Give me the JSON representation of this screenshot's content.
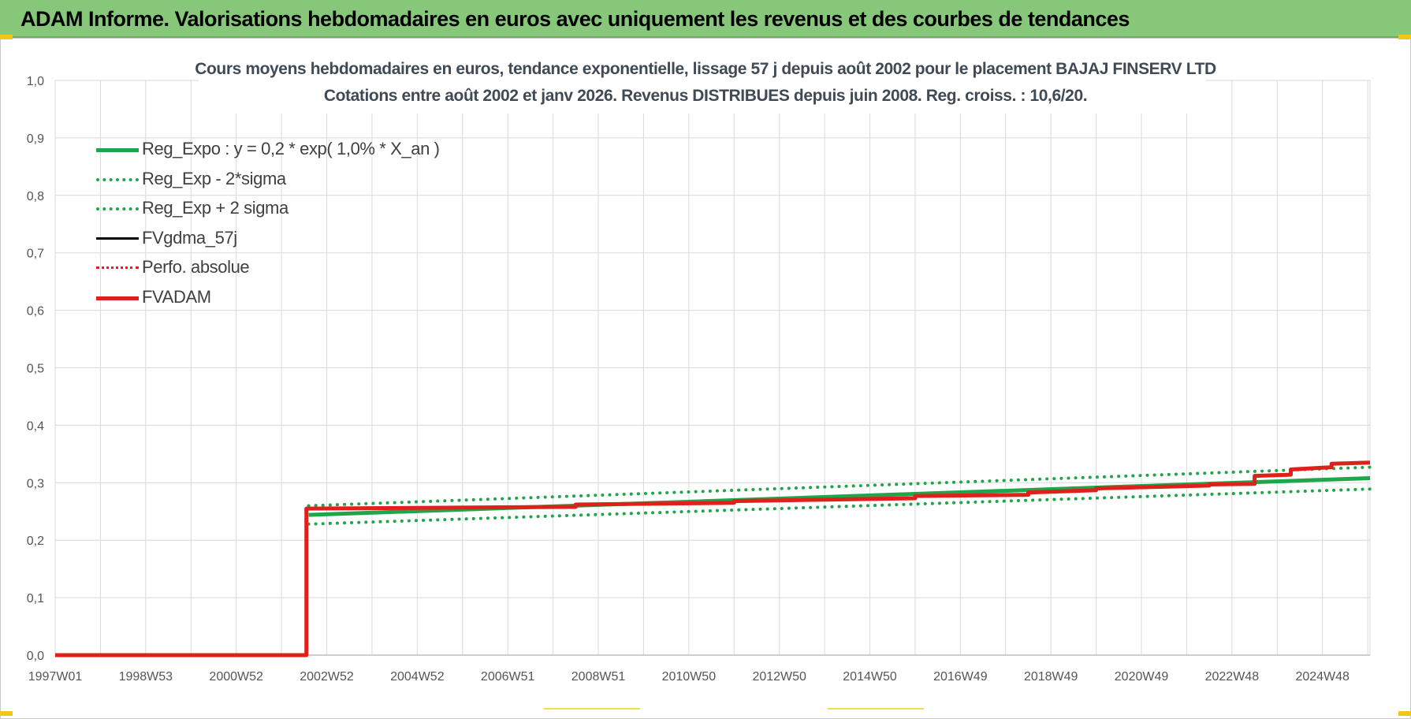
{
  "banner": {
    "title": "ADAM Informe. Valorisations hebdomadaires en euros avec uniquement les revenus et des courbes de tendances"
  },
  "chart_data": {
    "type": "line",
    "title_line1": "Cours moyens hebdomadaires en euros, tendance exponentielle, lissage 57 j depuis août 2002 pour le placement BAJAJ FINSERV LTD",
    "title_line2": "Cotations entre août 2002 et janv 2026. Revenus DISTRIBUES depuis juin 2008. Reg. croiss. : 10,6/20.",
    "xlabel": "",
    "ylabel": "",
    "x_range": [
      1997.0,
      2026.05
    ],
    "ylim": [
      0,
      1.0
    ],
    "y_ticks": [
      "0,0",
      "0,1",
      "0,2",
      "0,3",
      "0,4",
      "0,5",
      "0,6",
      "0,7",
      "0,8",
      "0,9",
      "1,0"
    ],
    "x_tick_labels": [
      "1997W01",
      "1998W53",
      "2000W52",
      "2002W52",
      "2004W52",
      "2006W51",
      "2008W51",
      "2010W50",
      "2012W50",
      "2014W50",
      "2016W49",
      "2018W49",
      "2020W49",
      "2022W48",
      "2024W48"
    ],
    "x_tick_years": [
      1997.0,
      1999.0,
      2001.0,
      2003.0,
      2005.0,
      2007.0,
      2009.0,
      2011.0,
      2013.0,
      2015.0,
      2017.0,
      2019.0,
      2021.0,
      2023.0,
      2025.0
    ],
    "grid": true,
    "legend_position": "top-left",
    "series": [
      {
        "name": "Reg_Expo : y = 0,2 * exp( 1,0% *  X_an )",
        "color": "#1fa64a",
        "style": "solid",
        "x": [
          2002.6,
          2026.05
        ],
        "y": [
          0.244,
          0.308
        ]
      },
      {
        "name": "Reg_Exp - 2*sigma",
        "color": "#1fa64a",
        "style": "dotted",
        "x": [
          2002.6,
          2026.05
        ],
        "y": [
          0.228,
          0.289
        ]
      },
      {
        "name": "Reg_Exp + 2 sigma",
        "color": "#1fa64a",
        "style": "dotted",
        "x": [
          2002.6,
          2026.05
        ],
        "y": [
          0.26,
          0.327
        ]
      },
      {
        "name": "FVgdma_57j",
        "color": "#000000",
        "style": "solid",
        "x": [
          1997.0,
          2002.55,
          2002.55,
          2008.5,
          2008.5,
          2012.0,
          2012.0,
          2016.0,
          2016.0,
          2018.5,
          2018.5,
          2020.0,
          2020.0,
          2022.5,
          2022.5,
          2023.5,
          2023.5,
          2024.3,
          2024.3,
          2025.2,
          2025.2,
          2025.9
        ],
        "y": [
          0.0,
          0.0,
          0.255,
          0.258,
          0.262,
          0.265,
          0.268,
          0.273,
          0.277,
          0.279,
          0.283,
          0.287,
          0.29,
          0.295,
          0.297,
          0.298,
          0.312,
          0.314,
          0.323,
          0.327,
          0.333,
          0.336
        ]
      },
      {
        "name": "Perfo. absolue",
        "color": "#e0201b",
        "style": "dotted",
        "x": [],
        "y": []
      },
      {
        "name": "FVADAM",
        "color": "#e0201b",
        "style": "solid",
        "x": [
          1997.0,
          2002.55,
          2002.55,
          2008.5,
          2008.5,
          2012.0,
          2012.0,
          2016.0,
          2016.0,
          2018.5,
          2018.5,
          2020.0,
          2020.0,
          2022.5,
          2022.5,
          2023.5,
          2023.5,
          2024.3,
          2024.3,
          2025.2,
          2025.2,
          2026.05
        ],
        "y": [
          0.0,
          0.0,
          0.255,
          0.258,
          0.262,
          0.265,
          0.268,
          0.273,
          0.277,
          0.279,
          0.283,
          0.287,
          0.29,
          0.295,
          0.297,
          0.298,
          0.312,
          0.314,
          0.323,
          0.327,
          0.333,
          0.335
        ]
      }
    ]
  }
}
